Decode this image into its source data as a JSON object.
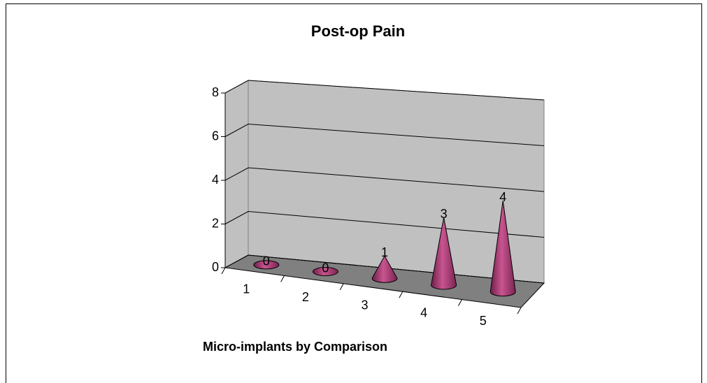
{
  "chart_data": {
    "type": "cone3d",
    "title": "Post-op Pain",
    "x_label": "Micro-implants by Comparison",
    "categories": [
      "1",
      "2",
      "3",
      "4",
      "5"
    ],
    "values": [
      0,
      0,
      1,
      3,
      4
    ],
    "color": "#a3336f",
    "ylim": [
      0,
      8
    ],
    "yticks": [
      0,
      2,
      4,
      6,
      8
    ],
    "grid": true
  }
}
